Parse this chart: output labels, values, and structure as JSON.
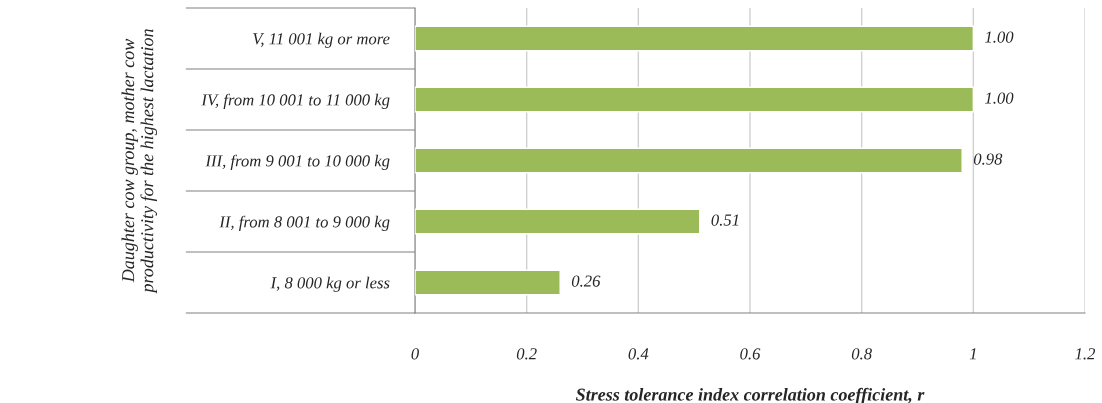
{
  "chart_data": {
    "type": "bar",
    "orientation": "horizontal",
    "xlabel": "Stress tolerance index correlation coefficient, r",
    "ylabel": "Daughter cow group, mother cow productivity for the highest lactation",
    "categories": [
      "V, 11 001 kg or more",
      "IV, from 10 001 to 11 000 kg",
      "III, from 9 001 to 10 000 kg",
      "II, from 8 001 to 9 000 kg",
      "I, 8 000 kg or less"
    ],
    "values": [
      1.0,
      1.0,
      0.98,
      0.51,
      0.26
    ],
    "value_labels": [
      "1.00",
      "1.00",
      "0.98",
      "0.51",
      "0.26"
    ],
    "color": "#9bbb59",
    "xlim": [
      0,
      1.2
    ],
    "xticks": [
      0,
      0.2,
      0.4,
      0.6,
      0.8,
      1,
      1.2
    ],
    "grid": "x",
    "legend": false
  }
}
